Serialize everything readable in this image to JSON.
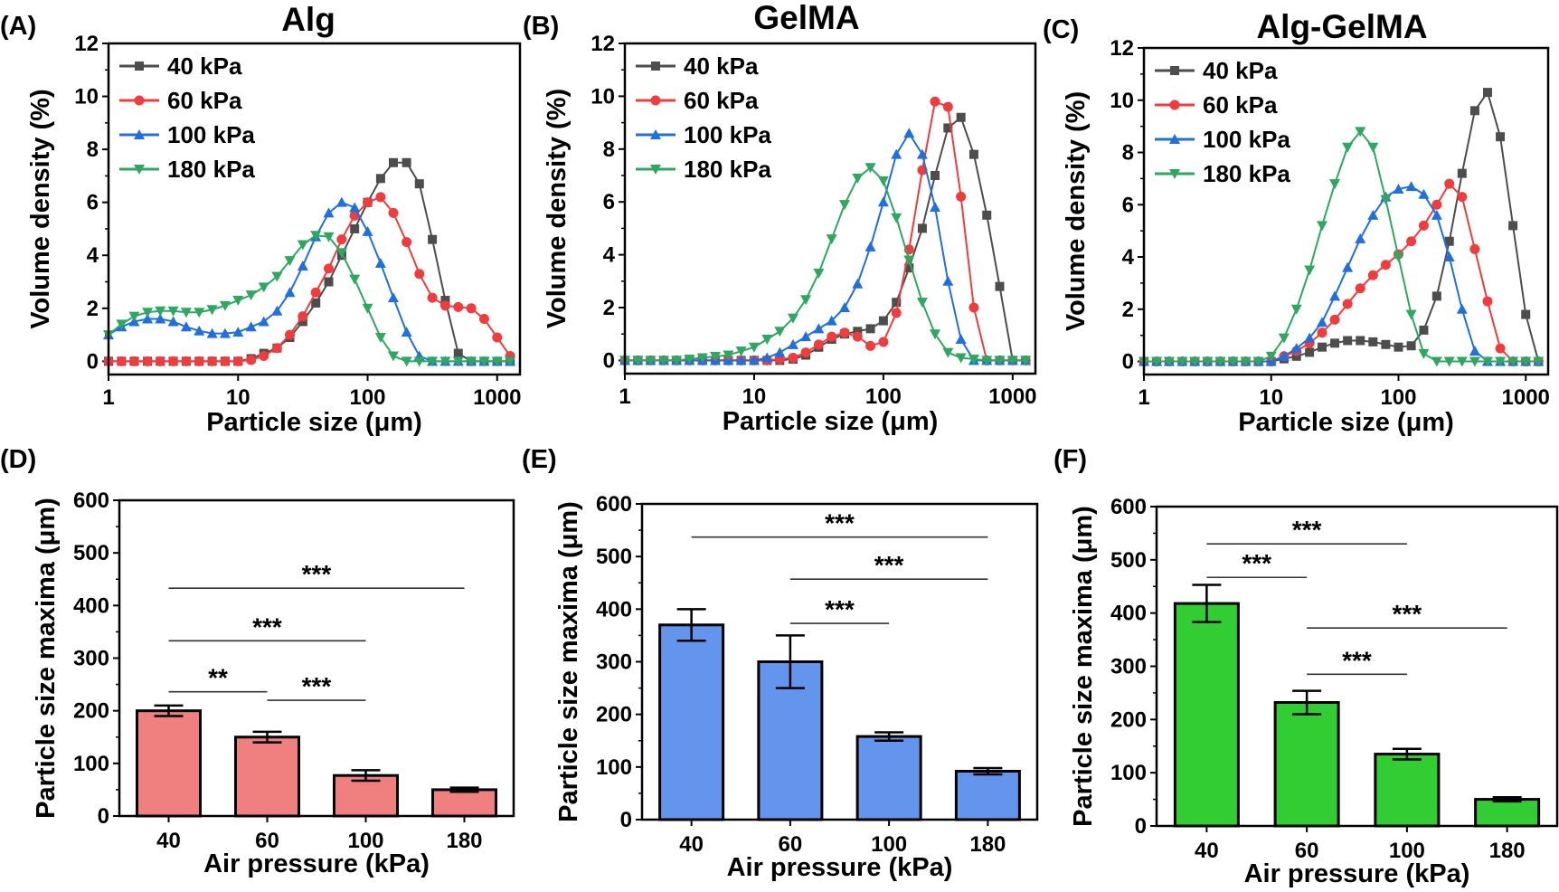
{
  "chart_data": [
    {
      "panel_label": "(A)",
      "type": "line",
      "title": "Alg",
      "xlabel": "Particle size (μm)",
      "ylabel": "Volume density (%)",
      "xscale": "log",
      "xlim": [
        1,
        1500
      ],
      "ylim": [
        -0.5,
        12
      ],
      "xticks": [
        "1",
        "10",
        "100",
        "1000"
      ],
      "yticks": [
        "0",
        "2",
        "4",
        "6",
        "8",
        "10",
        "12"
      ],
      "grid": false,
      "legend": "top-left",
      "x": [
        1,
        1.26,
        1.58,
        2,
        2.51,
        3.16,
        3.98,
        5.01,
        6.31,
        7.94,
        10,
        12.6,
        15.8,
        20,
        25.1,
        31.6,
        39.8,
        50.1,
        63.1,
        79.4,
        100,
        126,
        158,
        200,
        251,
        316,
        398,
        501,
        631,
        794,
        1000,
        1259
      ],
      "series": [
        {
          "name": "40 kPa",
          "color": "#4d4d4d",
          "marker": "square",
          "values": [
            0,
            0,
            0,
            0,
            0,
            0,
            0,
            0,
            0,
            0,
            0,
            0.1,
            0.3,
            0.5,
            0.9,
            1.5,
            2.2,
            3.0,
            4.0,
            5.0,
            6.0,
            6.9,
            7.5,
            7.5,
            6.7,
            4.6,
            2.3,
            0.3,
            0,
            0,
            0,
            0
          ]
        },
        {
          "name": "60 kPa",
          "color": "#f03c3c",
          "marker": "circle",
          "values": [
            0,
            0,
            0,
            0,
            0,
            0,
            0,
            0,
            0,
            0,
            0,
            0.05,
            0.2,
            0.5,
            1.0,
            1.7,
            2.6,
            3.5,
            4.6,
            5.5,
            6.0,
            6.2,
            5.6,
            4.5,
            3.3,
            2.4,
            2.1,
            2.05,
            2.0,
            1.6,
            0.9,
            0.2
          ]
        },
        {
          "name": "100 kPa",
          "color": "#1f6fdf",
          "marker": "triangle-up",
          "values": [
            1.0,
            1.3,
            1.5,
            1.6,
            1.6,
            1.5,
            1.3,
            1.15,
            1.05,
            1.05,
            1.1,
            1.3,
            1.5,
            1.9,
            2.6,
            3.6,
            4.7,
            5.6,
            6.0,
            5.8,
            4.9,
            3.7,
            2.4,
            1.1,
            0.2,
            0,
            0,
            0,
            0,
            0,
            0,
            0
          ]
        },
        {
          "name": "180 kPa",
          "color": "#2ea860",
          "marker": "triangle-down",
          "values": [
            1.0,
            1.4,
            1.7,
            1.85,
            1.9,
            1.9,
            1.85,
            1.85,
            1.95,
            2.1,
            2.3,
            2.5,
            2.8,
            3.2,
            3.8,
            4.4,
            4.75,
            4.7,
            4.1,
            3.1,
            2.0,
            0.9,
            0.2,
            0,
            0,
            0,
            0,
            0,
            0,
            0,
            0,
            0
          ]
        }
      ]
    },
    {
      "panel_label": "(B)",
      "type": "line",
      "title": "GelMA",
      "xlabel": "Particle size (μm)",
      "ylabel": "Volume density (%)",
      "xscale": "log",
      "xlim": [
        1,
        1500
      ],
      "ylim": [
        -0.5,
        12
      ],
      "xticks": [
        "1",
        "10",
        "100",
        "1000"
      ],
      "yticks": [
        "0",
        "2",
        "4",
        "6",
        "8",
        "10",
        "12"
      ],
      "grid": false,
      "legend": "top-left",
      "x": [
        1,
        1.26,
        1.58,
        2,
        2.51,
        3.16,
        3.98,
        5.01,
        6.31,
        7.94,
        10,
        12.6,
        15.8,
        20,
        25.1,
        31.6,
        39.8,
        50.1,
        63.1,
        79.4,
        100,
        126,
        158,
        200,
        251,
        316,
        398,
        501,
        631,
        794,
        1000,
        1259
      ],
      "series": [
        {
          "name": "40 kPa",
          "color": "#4d4d4d",
          "marker": "square",
          "values": [
            0,
            0,
            0,
            0,
            0,
            0,
            0,
            0,
            0,
            0,
            0,
            0,
            0,
            0.05,
            0.2,
            0.5,
            0.8,
            1.0,
            1.1,
            1.2,
            1.5,
            2.2,
            3.5,
            5.0,
            7.0,
            8.8,
            9.2,
            7.8,
            5.5,
            2.8,
            0,
            0
          ]
        },
        {
          "name": "60 kPa",
          "color": "#f03c3c",
          "marker": "circle",
          "values": [
            0,
            0,
            0,
            0,
            0,
            0,
            0,
            0,
            0,
            0,
            0,
            0,
            0.05,
            0.1,
            0.3,
            0.6,
            0.9,
            1.05,
            0.9,
            0.55,
            0.7,
            1.8,
            4.2,
            7.2,
            9.8,
            9.6,
            6.2,
            2.0,
            0,
            0,
            0,
            0
          ]
        },
        {
          "name": "100 kPa",
          "color": "#1f6fdf",
          "marker": "triangle-up",
          "values": [
            0,
            0,
            0,
            0,
            0,
            0,
            0,
            0,
            0,
            0,
            0,
            0.1,
            0.3,
            0.6,
            0.9,
            1.2,
            1.5,
            2.0,
            2.9,
            4.3,
            6.0,
            7.8,
            8.6,
            7.8,
            5.8,
            3.0,
            0.8,
            0,
            0,
            0,
            0,
            0
          ]
        },
        {
          "name": "180 kPa",
          "color": "#2ea860",
          "marker": "triangle-down",
          "values": [
            0,
            0,
            0,
            0,
            0,
            0.05,
            0.1,
            0.15,
            0.2,
            0.35,
            0.5,
            0.8,
            1.1,
            1.6,
            2.3,
            3.3,
            4.6,
            5.9,
            6.9,
            7.3,
            6.8,
            5.4,
            3.8,
            2.2,
            1.0,
            0.3,
            0.1,
            0.05,
            0,
            0,
            0,
            0
          ]
        }
      ]
    },
    {
      "panel_label": "(C)",
      "type": "line",
      "title": "Alg-GelMA",
      "xlabel": "Particle size (μm)",
      "ylabel": "Volume density (%)",
      "xscale": "log",
      "xlim": [
        1,
        1500
      ],
      "ylim": [
        -0.5,
        12
      ],
      "xticks": [
        "1",
        "10",
        "100",
        "1000"
      ],
      "yticks": [
        "0",
        "2",
        "4",
        "6",
        "8",
        "10",
        "12"
      ],
      "grid": false,
      "legend": "top-left",
      "x": [
        1,
        1.26,
        1.58,
        2,
        2.51,
        3.16,
        3.98,
        5.01,
        6.31,
        7.94,
        10,
        12.6,
        15.8,
        20,
        25.1,
        31.6,
        39.8,
        50.1,
        63.1,
        79.4,
        100,
        126,
        158,
        200,
        251,
        316,
        398,
        501,
        631,
        794,
        1000,
        1259
      ],
      "series": [
        {
          "name": "40 kPa",
          "color": "#4d4d4d",
          "marker": "square",
          "values": [
            0,
            0,
            0,
            0,
            0,
            0,
            0,
            0,
            0,
            0,
            0,
            0.1,
            0.2,
            0.35,
            0.55,
            0.7,
            0.8,
            0.8,
            0.75,
            0.65,
            0.55,
            0.6,
            1.2,
            2.5,
            4.6,
            7.2,
            9.6,
            10.3,
            8.6,
            5.2,
            1.8,
            0
          ]
        },
        {
          "name": "60 kPa",
          "color": "#f03c3c",
          "marker": "circle",
          "values": [
            0,
            0,
            0,
            0,
            0,
            0,
            0,
            0,
            0,
            0,
            0,
            0.2,
            0.4,
            0.7,
            1.1,
            1.6,
            2.2,
            2.8,
            3.3,
            3.7,
            4.1,
            4.6,
            5.2,
            6.0,
            6.8,
            6.3,
            4.3,
            2.3,
            0.5,
            0,
            0,
            0
          ]
        },
        {
          "name": "100 kPa",
          "color": "#1f6fdf",
          "marker": "triangle-up",
          "values": [
            0,
            0,
            0,
            0,
            0,
            0,
            0,
            0,
            0,
            0,
            0,
            0.2,
            0.5,
            0.9,
            1.5,
            2.5,
            3.6,
            4.7,
            5.6,
            6.3,
            6.6,
            6.7,
            6.4,
            5.6,
            4.0,
            2.0,
            0.4,
            0,
            0,
            0,
            0,
            0
          ]
        },
        {
          "name": "180 kPa",
          "color": "#2ea860",
          "marker": "triangle-down",
          "values": [
            0,
            0,
            0,
            0,
            0,
            0,
            0,
            0,
            0,
            0,
            0.2,
            0.9,
            2.0,
            3.5,
            5.2,
            6.8,
            8.2,
            8.8,
            8.2,
            6.2,
            4.0,
            1.8,
            0.3,
            0,
            0,
            0,
            0,
            0,
            0,
            0,
            0,
            0
          ]
        }
      ]
    },
    {
      "panel_label": "(D)",
      "type": "bar",
      "title": "",
      "xlabel": "Air pressure (kPa)",
      "ylabel": "Particle size maxima (μm)",
      "categories": [
        "40",
        "60",
        "100",
        "180"
      ],
      "values": [
        200,
        150,
        77,
        50
      ],
      "errors": [
        10,
        10,
        10,
        4
      ],
      "color": "#f08080",
      "ylim": [
        0,
        600
      ],
      "yticks": [
        "0",
        "100",
        "200",
        "300",
        "400",
        "500",
        "600"
      ],
      "significance": [
        {
          "from": "40",
          "to": "180",
          "level": 433,
          "label": "***"
        },
        {
          "from": "40",
          "to": "100",
          "level": 333,
          "label": "***"
        },
        {
          "from": "40",
          "to": "60",
          "level": 236,
          "label": "**"
        },
        {
          "from": "60",
          "to": "100",
          "level": 220,
          "label": "***"
        }
      ]
    },
    {
      "panel_label": "(E)",
      "type": "bar",
      "title": "",
      "xlabel": "Air pressure (kPa)",
      "ylabel": "Particle size maxima (μm)",
      "categories": [
        "40",
        "60",
        "100",
        "180"
      ],
      "values": [
        370,
        300,
        158,
        92
      ],
      "errors": [
        30,
        50,
        8,
        6
      ],
      "color": "#6495ed",
      "ylim": [
        0,
        600
      ],
      "yticks": [
        "0",
        "100",
        "200",
        "300",
        "400",
        "500",
        "600"
      ],
      "significance": [
        {
          "from": "40",
          "to": "180",
          "level": 537,
          "label": "***"
        },
        {
          "from": "60",
          "to": "180",
          "level": 457,
          "label": "***"
        },
        {
          "from": "60",
          "to": "100",
          "level": 373,
          "label": "***"
        }
      ]
    },
    {
      "panel_label": "(F)",
      "type": "bar",
      "title": "",
      "xlabel": "Air pressure (kPa)",
      "ylabel": "Particle size maxima (μm)",
      "categories": [
        "40",
        "60",
        "100",
        "180"
      ],
      "values": [
        418,
        232,
        135,
        50
      ],
      "errors": [
        35,
        22,
        10,
        4
      ],
      "color": "#32cd32",
      "ylim": [
        0,
        600
      ],
      "yticks": [
        "0",
        "100",
        "200",
        "300",
        "400",
        "500",
        "600"
      ],
      "significance": [
        {
          "from": "40",
          "to": "100",
          "level": 530,
          "label": "***"
        },
        {
          "from": "40",
          "to": "60",
          "level": 467,
          "label": "***"
        },
        {
          "from": "60",
          "to": "180",
          "level": 372,
          "label": "***"
        },
        {
          "from": "60",
          "to": "100",
          "level": 285,
          "label": "***"
        }
      ]
    }
  ]
}
